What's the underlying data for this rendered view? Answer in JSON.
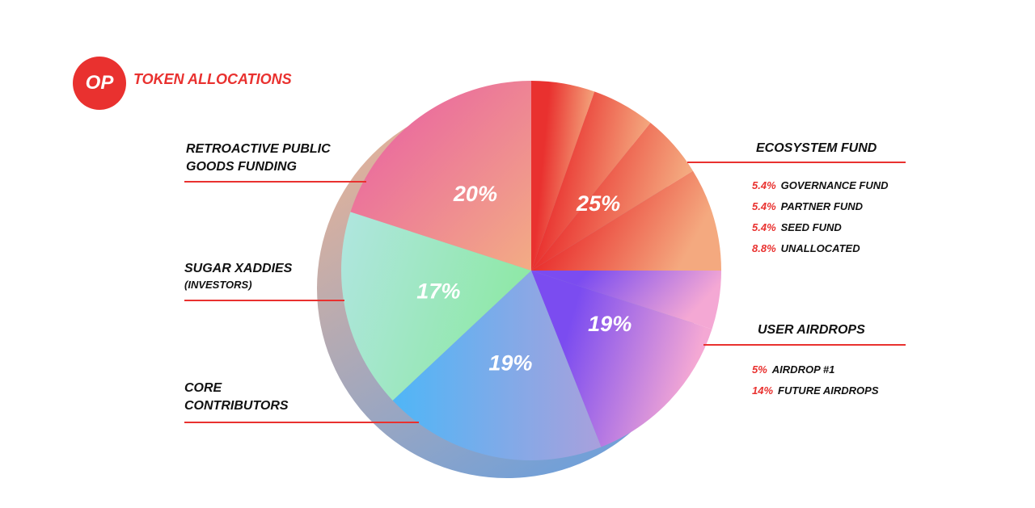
{
  "logo": "OP",
  "title": "TOKEN ALLOCATIONS",
  "chart_data": {
    "type": "pie",
    "title": "TOKEN ALLOCATIONS",
    "slices": [
      {
        "label": "ECOSYSTEM FUND",
        "value": 25,
        "display": "25%",
        "colors": [
          "#e9312f",
          "#f4a97f"
        ],
        "sub": [
          {
            "pct": "5.4%",
            "label": "GOVERNANCE FUND",
            "value": 5.4
          },
          {
            "pct": "5.4%",
            "label": "PARTNER FUND",
            "value": 5.4
          },
          {
            "pct": "5.4%",
            "label": "SEED FUND",
            "value": 5.4
          },
          {
            "pct": "8.8%",
            "label": "UNALLOCATED",
            "value": 8.8
          }
        ]
      },
      {
        "label": "USER AIRDROPS",
        "value": 19,
        "display": "19%",
        "colors": [
          "#7b4cf0",
          "#f4a8d4"
        ],
        "sub": [
          {
            "pct": "5%",
            "label": "AIRDROP #1",
            "value": 5
          },
          {
            "pct": "14%",
            "label": "FUTURE AIRDROPS",
            "value": 14
          }
        ]
      },
      {
        "label": "CORE CONTRIBUTORS",
        "value": 19,
        "display": "19%",
        "colors": [
          "#4fb6f7",
          "#a9a0dc"
        ]
      },
      {
        "label": "SUGAR XADDIES",
        "sublabel": "(INVESTORS)",
        "value": 17,
        "display": "17%",
        "colors": [
          "#b0e6e0",
          "#8ee8a6"
        ]
      },
      {
        "label": "RETROACTIVE PUBLIC GOODS FUNDING",
        "value": 20,
        "display": "20%",
        "colors": [
          "#e85aa5",
          "#f3ac84"
        ]
      }
    ]
  }
}
